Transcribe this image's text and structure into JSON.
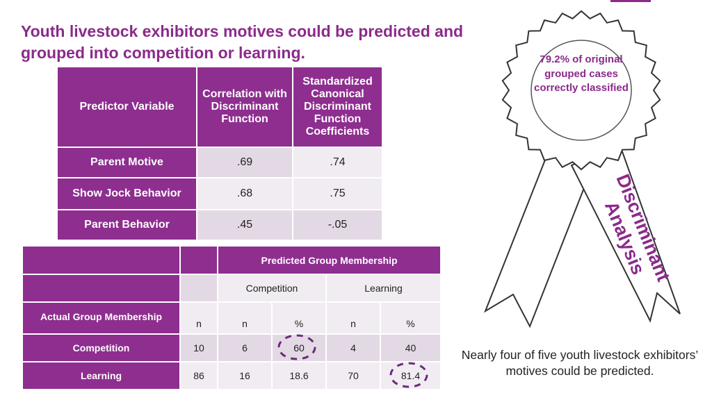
{
  "title": "Youth livestock exhibitors motives could be predicted and grouped into competition or learning.",
  "table1": {
    "headers": [
      "Predictor Variable",
      "Correlation with Discriminant Function",
      "Standardized Canonical Discriminant Function Coefficients"
    ],
    "rows": [
      [
        "Parent Motive",
        ".69",
        ".74"
      ],
      [
        "Show Jock Behavior",
        ".68",
        ".75"
      ],
      [
        "Parent Behavior",
        ".45",
        "-.05"
      ]
    ]
  },
  "table2": {
    "predicted_header": "Predicted Group Membership",
    "groups": [
      "Competition",
      "Learning"
    ],
    "actual_header": "Actual Group Membership",
    "columns": [
      "n",
      "n",
      "%",
      "n",
      "%"
    ],
    "rows": [
      [
        "Competition",
        "10",
        "6",
        "60",
        "4",
        "40"
      ],
      [
        "Learning",
        "86",
        "16",
        "18.6",
        "70",
        "81.4"
      ]
    ]
  },
  "ribbon": {
    "text": "79.2% of original grouped cases correctly classified",
    "label_lines": [
      "Discriminant",
      "Analysis"
    ]
  },
  "caption": "Nearly four of five youth livestock exhibitors’ motives could be predicted."
}
